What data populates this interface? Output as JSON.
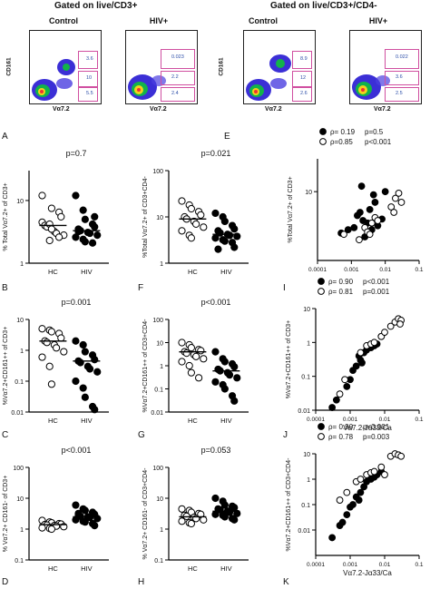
{
  "headers": {
    "left": "Gated on live/CD3+",
    "right": "Gated on live/CD3+/CD4-"
  },
  "flow": {
    "panels": [
      {
        "title": "Control",
        "gates": [
          "3.6",
          "10",
          "5.5"
        ]
      },
      {
        "title": "HIV+",
        "gates": [
          "0.023",
          "2.2",
          "2.4"
        ]
      },
      {
        "title": "Control",
        "gates": [
          "8.9",
          "12",
          "2.6"
        ]
      },
      {
        "title": "HIV+",
        "gates": [
          "0.022",
          "3.6",
          "2.5"
        ]
      }
    ],
    "ylabel": "CD161",
    "xlabel": "Vα7.2"
  },
  "panel_letters": [
    "A",
    "B",
    "C",
    "D",
    "E",
    "F",
    "G",
    "H",
    "I",
    "J",
    "K"
  ],
  "colors": {
    "axis": "#000000",
    "gate": "#d04fa0",
    "gate_text": "#2b4da8"
  },
  "chart_data": [
    {
      "id": "A",
      "type": "scatter",
      "scale": "log",
      "ylim": [
        1,
        30
      ],
      "yticks": [
        "1",
        "10"
      ],
      "ylabel": "% Total Vα7.2+ of CD3+",
      "categories": [
        "HC",
        "HIV"
      ],
      "pvalue": "p=0.7",
      "series": [
        {
          "name": "HC",
          "filled": false,
          "median": 4.0,
          "values": [
            4.5,
            2.3,
            7.5,
            6.5,
            5.5,
            4.0,
            3.8,
            3.2,
            3.0,
            2.8,
            12.0,
            4.2,
            3.5,
            2.6
          ]
        },
        {
          "name": "HIV",
          "filled": true,
          "median": 3.3,
          "values": [
            12.0,
            7.0,
            5.0,
            4.2,
            3.8,
            3.5,
            3.3,
            3.1,
            3.0,
            2.8,
            2.6,
            2.4,
            2.2,
            2.1,
            5.5,
            3.2
          ]
        }
      ]
    },
    {
      "id": "B",
      "type": "scatter",
      "scale": "log",
      "ylim": [
        0.01,
        10
      ],
      "yticks": [
        "0.01",
        "0.1",
        "1",
        "10"
      ],
      "ylabel": "%Vα7.2+CD161++ of CD3+",
      "categories": [
        "HC",
        "HIV"
      ],
      "pvalue": "p=0.001",
      "series": [
        {
          "name": "HC",
          "filled": false,
          "median": 2.0,
          "values": [
            5.0,
            4.5,
            4.0,
            3.5,
            2.5,
            2.0,
            1.8,
            1.5,
            1.2,
            0.9,
            0.6,
            0.3,
            0.08
          ]
        },
        {
          "name": "HIV",
          "filled": true,
          "median": 0.45,
          "values": [
            2.0,
            1.5,
            0.9,
            0.7,
            0.5,
            0.45,
            0.4,
            0.3,
            0.25,
            0.2,
            0.1,
            0.06,
            0.03,
            0.015,
            0.012
          ]
        }
      ]
    },
    {
      "id": "C",
      "type": "scatter",
      "scale": "log",
      "ylim": [
        0.1,
        100
      ],
      "yticks": [
        "0.1",
        "1",
        "10",
        "100"
      ],
      "ylabel": "% Vα7.2+ CD161- of CD3+",
      "categories": [
        "HC",
        "HIV"
      ],
      "pvalue": "p<0.001",
      "series": [
        {
          "name": "HC",
          "filled": false,
          "median": 1.4,
          "values": [
            1.9,
            1.7,
            1.6,
            1.5,
            1.45,
            1.4,
            1.35,
            1.3,
            1.25,
            1.2,
            1.1,
            1.05,
            1.0
          ]
        },
        {
          "name": "HIV",
          "filled": true,
          "median": 2.5,
          "values": [
            6.0,
            4.5,
            4.0,
            3.5,
            3.0,
            2.8,
            2.6,
            2.5,
            2.4,
            2.2,
            2.0,
            1.8,
            1.7,
            1.5,
            1.3,
            3.2
          ]
        }
      ]
    },
    {
      "id": "F",
      "type": "scatter",
      "scale": "log",
      "ylim": [
        1,
        100
      ],
      "yticks": [
        "1",
        "10",
        "100"
      ],
      "ylabel": "%Total Vα7.2+ of CD3+CD4-",
      "categories": [
        "HC",
        "HIV"
      ],
      "pvalue": "p=0.021",
      "series": [
        {
          "name": "HC",
          "filled": false,
          "median": 9.0,
          "values": [
            22.0,
            18.0,
            15.0,
            13.0,
            11.0,
            10.0,
            9.0,
            8.0,
            7.0,
            6.0,
            5.0,
            4.0,
            3.5
          ]
        },
        {
          "name": "HIV",
          "filled": true,
          "median": 4.2,
          "values": [
            12.0,
            10.0,
            8.0,
            6.5,
            5.5,
            5.0,
            4.5,
            4.2,
            4.0,
            3.8,
            3.5,
            3.2,
            3.0,
            2.8,
            2.2,
            2.0
          ]
        }
      ]
    },
    {
      "id": "G",
      "type": "scatter",
      "scale": "log",
      "ylim": [
        0.01,
        100
      ],
      "yticks": [
        "0.01",
        "0.1",
        "1",
        "10",
        "100"
      ],
      "ylabel": "%Vα7.2+CD161++ of CD3+CD4-",
      "categories": [
        "HC",
        "HIV"
      ],
      "pvalue": "p<0.001",
      "series": [
        {
          "name": "HC",
          "filled": false,
          "median": 4.0,
          "values": [
            10.0,
            8.0,
            6.0,
            5.0,
            4.5,
            4.0,
            3.5,
            3.0,
            2.5,
            2.0,
            1.5,
            1.0,
            0.5,
            0.3
          ]
        },
        {
          "name": "HIV",
          "filled": true,
          "median": 0.6,
          "values": [
            4.0,
            2.0,
            1.5,
            1.2,
            0.9,
            0.7,
            0.6,
            0.5,
            0.4,
            0.3,
            0.2,
            0.15,
            0.1,
            0.05,
            0.03
          ]
        }
      ]
    },
    {
      "id": "H",
      "type": "scatter",
      "scale": "log",
      "ylim": [
        0.1,
        100
      ],
      "yticks": [
        "0.1",
        "1",
        "10",
        "100"
      ],
      "ylabel": "% Vα7.2+ CD161- of CD3+CD4-",
      "categories": [
        "HC",
        "HIV"
      ],
      "pvalue": "p=0.053",
      "series": [
        {
          "name": "HC",
          "filled": false,
          "median": 2.5,
          "values": [
            4.5,
            4.0,
            3.5,
            3.2,
            3.0,
            2.8,
            2.6,
            2.4,
            2.2,
            2.0,
            1.8,
            1.6,
            1.5
          ]
        },
        {
          "name": "HIV",
          "filled": true,
          "median": 3.8,
          "values": [
            10.0,
            8.0,
            6.0,
            5.5,
            5.0,
            4.5,
            4.2,
            3.8,
            3.5,
            3.2,
            3.0,
            2.8,
            2.5,
            2.2,
            2.0
          ]
        }
      ]
    },
    {
      "id": "E",
      "type": "scatter",
      "scale": "loglog",
      "xlim": [
        0.0001,
        0.1
      ],
      "ylim": [
        1,
        30
      ],
      "xticks": [
        "0.0001",
        "0.001",
        "0.01",
        "0.1"
      ],
      "yticks": [
        "10"
      ],
      "ylabel": "%Total Vα7.2+ of CD3+",
      "xlabel": "",
      "legend": [
        {
          "filled": true,
          "rho": "ρ= 0.19",
          "p": "p=0.5"
        },
        {
          "filled": false,
          "rho": "ρ=0.85",
          "p": "p<0.001"
        }
      ],
      "series": [
        {
          "filled": true,
          "points": [
            [
              0.0005,
              2.5
            ],
            [
              0.0008,
              2.8
            ],
            [
              0.0012,
              3.0
            ],
            [
              0.0015,
              4.5
            ],
            [
              0.002,
              12.0
            ],
            [
              0.0018,
              5.0
            ],
            [
              0.003,
              3.5
            ],
            [
              0.004,
              2.8
            ],
            [
              0.005,
              7.0
            ],
            [
              0.0025,
              2.2
            ],
            [
              0.006,
              3.2
            ],
            [
              0.0035,
              5.5
            ],
            [
              0.008,
              4.0
            ],
            [
              0.01,
              10.0
            ],
            [
              0.0022,
              3.8
            ],
            [
              0.0045,
              9.0
            ]
          ]
        },
        {
          "filled": false,
          "points": [
            [
              0.0006,
              2.4
            ],
            [
              0.0017,
              2.0
            ],
            [
              0.0025,
              3.0
            ],
            [
              0.003,
              2.6
            ],
            [
              0.004,
              3.5
            ],
            [
              0.005,
              4.2
            ],
            [
              0.006,
              3.8
            ],
            [
              0.015,
              6.0
            ],
            [
              0.02,
              8.0
            ],
            [
              0.025,
              9.5
            ],
            [
              0.018,
              5.0
            ],
            [
              0.03,
              7.0
            ],
            [
              0.0035,
              2.4
            ]
          ]
        }
      ]
    },
    {
      "id": "I",
      "type": "scatter",
      "scale": "loglog",
      "xlim": [
        0.0001,
        0.1
      ],
      "ylim": [
        0.01,
        10
      ],
      "xticks": [
        "0.0001",
        "0.001",
        "0.01",
        "0.1"
      ],
      "yticks": [
        "0.01",
        "0.1",
        "1",
        "10"
      ],
      "ylabel": "%Vα7.2+CD161++ of CD3+",
      "xlabel": "Vα7.2-Jα33/Ca",
      "legend": [
        {
          "filled": true,
          "rho": "ρ= 0.90",
          "p": "p<0.001"
        },
        {
          "filled": false,
          "rho": "ρ= 0.81",
          "p": "p=0.001"
        }
      ],
      "series": [
        {
          "filled": true,
          "points": [
            [
              0.0003,
              0.012
            ],
            [
              0.0004,
              0.02
            ],
            [
              0.0008,
              0.05
            ],
            [
              0.001,
              0.08
            ],
            [
              0.0012,
              0.15
            ],
            [
              0.0015,
              0.2
            ],
            [
              0.002,
              0.3
            ],
            [
              0.0018,
              0.4
            ],
            [
              0.0025,
              0.5
            ],
            [
              0.003,
              0.6
            ],
            [
              0.004,
              0.7
            ],
            [
              0.005,
              0.8
            ],
            [
              0.006,
              0.9
            ],
            [
              0.008,
              1.5
            ],
            [
              0.0022,
              0.25
            ]
          ]
        },
        {
          "filled": false,
          "points": [
            [
              0.0005,
              0.03
            ],
            [
              0.0007,
              0.08
            ],
            [
              0.002,
              0.5
            ],
            [
              0.003,
              0.8
            ],
            [
              0.004,
              0.9
            ],
            [
              0.005,
              1.0
            ],
            [
              0.008,
              1.5
            ],
            [
              0.01,
              2.0
            ],
            [
              0.015,
              3.0
            ],
            [
              0.02,
              4.0
            ],
            [
              0.025,
              5.0
            ],
            [
              0.03,
              4.5
            ],
            [
              0.028,
              3.5
            ]
          ]
        }
      ]
    },
    {
      "id": "J",
      "type": "scatter",
      "scale": "loglog",
      "xlim": [
        0.0001,
        0.1
      ],
      "ylim": [
        0.001,
        10
      ],
      "xticks": [
        "0.0001",
        "0.001",
        "0.01",
        "0.1"
      ],
      "yticks": [
        "0.01",
        "0.1",
        "1",
        "10"
      ],
      "ylabel": "%Vα7.2+CD161++ of CD3+CD4-",
      "xlabel": "Vα7.2-Jα33/Ca",
      "legend": [
        {
          "filled": true,
          "rho": "ρ= 0.90",
          "p": "p<0.001"
        },
        {
          "filled": false,
          "rho": "ρ= 0.78",
          "p": "p=0.003"
        }
      ],
      "series": [
        {
          "filled": true,
          "points": [
            [
              0.0003,
              0.005
            ],
            [
              0.0005,
              0.015
            ],
            [
              0.0006,
              0.02
            ],
            [
              0.0008,
              0.04
            ],
            [
              0.001,
              0.08
            ],
            [
              0.0012,
              0.1
            ],
            [
              0.0015,
              0.2
            ],
            [
              0.002,
              0.3
            ],
            [
              0.0025,
              0.5
            ],
            [
              0.003,
              0.8
            ],
            [
              0.004,
              1.0
            ],
            [
              0.005,
              1.2
            ],
            [
              0.006,
              1.5
            ],
            [
              0.008,
              2.0
            ],
            [
              0.0018,
              0.15
            ]
          ]
        },
        {
          "filled": false,
          "points": [
            [
              0.0005,
              0.15
            ],
            [
              0.0008,
              0.3
            ],
            [
              0.0015,
              0.8
            ],
            [
              0.002,
              1.0
            ],
            [
              0.003,
              1.5
            ],
            [
              0.004,
              1.8
            ],
            [
              0.005,
              2.0
            ],
            [
              0.008,
              3.0
            ],
            [
              0.015,
              8.0
            ],
            [
              0.02,
              10.0
            ],
            [
              0.025,
              9.0
            ],
            [
              0.03,
              8.0
            ],
            [
              0.01,
              1.5
            ]
          ]
        }
      ]
    }
  ]
}
